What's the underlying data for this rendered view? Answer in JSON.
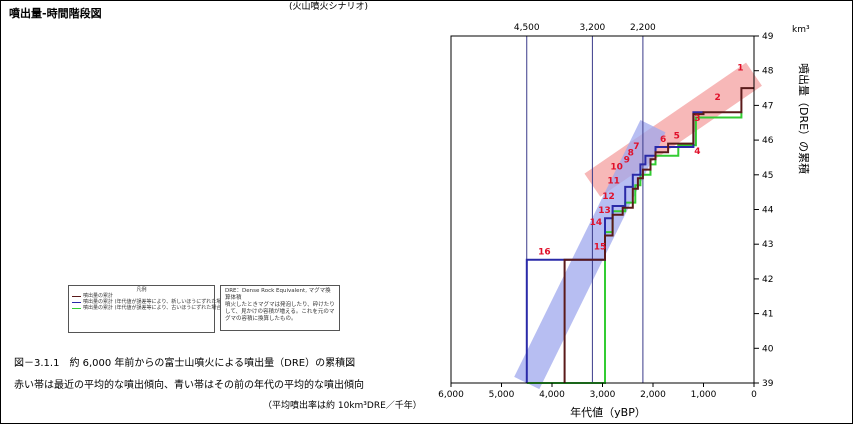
{
  "header": {
    "tab_label": "(火山噴火シナリオ)",
    "page_title": "噴出量-時間階段図"
  },
  "legend": {
    "title": "凡例",
    "items": [
      {
        "text": "噴出量の累計",
        "color": "#5a1a1a"
      },
      {
        "text": "噴出量の累計 (年代値が誤差等により、新しいほうにずれた場合)",
        "color": "#2a2aa8"
      },
      {
        "text": "噴出量の累計 (年代値が誤差等により、古いほうにずれた場合)",
        "color": "#33cc33"
      }
    ]
  },
  "dre_note": {
    "line1": "DRE：Dense Rock Equivalent, マグマ換算体積",
    "line2": "噴火したときマグマは発泡したり、砕けたりして、見かけの容積が増える。これを元のマグマの容積に換算したもの。"
  },
  "caption": {
    "figure": "図－3.1.1　約 6,000 年前からの富士山噴火による噴出量（DRE）の累積図",
    "subtitle": "赤い帯は最近の平均的な噴出傾向、青い帯はその前の年代の平均的な噴出傾向",
    "rate_note": "（平均噴出率は約 10km³DRE／千年）"
  },
  "chart_data": {
    "type": "line",
    "xlabel": "年代値（yBP）",
    "ylabel": "噴出量（DRE）の累積",
    "yunit": "km³",
    "xlim": [
      6000,
      0
    ],
    "ylim": [
      39,
      49
    ],
    "x_ticks": [
      "6,000",
      "5,000",
      "4,000",
      "3,000",
      "2,000",
      "1,000",
      "0"
    ],
    "y_ticks": [
      "39",
      "40",
      "41",
      "42",
      "43",
      "44",
      "45",
      "46",
      "47",
      "48",
      "49"
    ],
    "vertical_markers": [
      {
        "x": 4500,
        "label": "4,500"
      },
      {
        "x": 3200,
        "label": "3,200"
      },
      {
        "x": 2200,
        "label": "2,200"
      }
    ],
    "trend_bands": [
      {
        "name": "red",
        "color": "#f4a0a0",
        "x": [
          3200,
          0
        ],
        "y": [
          44.7,
          47.9
        ]
      },
      {
        "name": "blue",
        "color": "#9fa8ee",
        "x": [
          4500,
          2000
        ],
        "y": [
          39.0,
          46.4
        ]
      }
    ],
    "series": [
      {
        "key": "cumulative",
        "color": "#5a1a1a",
        "points": [
          [
            3750,
            39
          ],
          [
            3750,
            42.55
          ],
          [
            2950,
            42.55
          ],
          [
            2950,
            43.25
          ],
          [
            2800,
            43.25
          ],
          [
            2800,
            43.85
          ],
          [
            2600,
            43.85
          ],
          [
            2600,
            44.05
          ],
          [
            2400,
            44.05
          ],
          [
            2400,
            44.6
          ],
          [
            2300,
            44.6
          ],
          [
            2300,
            44.9
          ],
          [
            2200,
            44.9
          ],
          [
            2200,
            45.15
          ],
          [
            2050,
            45.15
          ],
          [
            2050,
            45.45
          ],
          [
            1950,
            45.45
          ],
          [
            1950,
            45.65
          ],
          [
            1700,
            45.65
          ],
          [
            1700,
            45.9
          ],
          [
            1200,
            45.9
          ],
          [
            1200,
            46.75
          ],
          [
            1000,
            46.75
          ],
          [
            1000,
            46.8
          ],
          [
            250,
            46.8
          ],
          [
            250,
            47.5
          ],
          [
            0,
            47.5
          ]
        ]
      },
      {
        "key": "newer",
        "color": "#2a2aa8",
        "points": [
          [
            4500,
            39
          ],
          [
            4500,
            42.55
          ],
          [
            2950,
            42.55
          ],
          [
            2950,
            43.75
          ],
          [
            2800,
            43.75
          ],
          [
            2800,
            44.1
          ],
          [
            2550,
            44.1
          ],
          [
            2550,
            44.65
          ],
          [
            2400,
            44.65
          ],
          [
            2400,
            45.0
          ],
          [
            2250,
            45.0
          ],
          [
            2250,
            45.3
          ],
          [
            2150,
            45.3
          ],
          [
            2150,
            45.55
          ],
          [
            1950,
            45.55
          ],
          [
            1950,
            45.8
          ],
          [
            1200,
            45.8
          ],
          [
            1200,
            46.8
          ],
          [
            1000,
            46.8
          ]
        ]
      },
      {
        "key": "older",
        "color": "#33cc33",
        "points": [
          [
            4500,
            39
          ],
          [
            2950,
            39
          ],
          [
            2950,
            43.35
          ],
          [
            2800,
            43.35
          ],
          [
            2800,
            43.95
          ],
          [
            2550,
            43.95
          ],
          [
            2550,
            44.2
          ],
          [
            2350,
            44.2
          ],
          [
            2350,
            44.7
          ],
          [
            2250,
            44.7
          ],
          [
            2250,
            45.0
          ],
          [
            2050,
            45.0
          ],
          [
            2050,
            45.3
          ],
          [
            1950,
            45.3
          ],
          [
            1950,
            45.55
          ],
          [
            1500,
            45.55
          ],
          [
            1500,
            45.85
          ],
          [
            1150,
            45.85
          ],
          [
            1150,
            46.65
          ],
          [
            250,
            46.65
          ],
          [
            250,
            46.8
          ]
        ]
      }
    ],
    "point_labels": [
      {
        "text": "1",
        "x": 270,
        "y": 48.0
      },
      {
        "text": "2",
        "x": 720,
        "y": 47.15
      },
      {
        "text": "3",
        "x": 1120,
        "y": 46.55
      },
      {
        "text": "4",
        "x": 1120,
        "y": 45.6
      },
      {
        "text": "5",
        "x": 1530,
        "y": 46.05
      },
      {
        "text": "6",
        "x": 1800,
        "y": 45.95
      },
      {
        "text": "7",
        "x": 2330,
        "y": 45.75
      },
      {
        "text": "8",
        "x": 2440,
        "y": 45.55
      },
      {
        "text": "9",
        "x": 2520,
        "y": 45.35
      },
      {
        "text": "10",
        "x": 2720,
        "y": 45.15
      },
      {
        "text": "11",
        "x": 2780,
        "y": 44.75
      },
      {
        "text": "12",
        "x": 2880,
        "y": 44.3
      },
      {
        "text": "13",
        "x": 2960,
        "y": 43.9
      },
      {
        "text": "14",
        "x": 3130,
        "y": 43.55
      },
      {
        "text": "15",
        "x": 3050,
        "y": 42.85
      },
      {
        "text": "16",
        "x": 4150,
        "y": 42.7
      }
    ]
  }
}
